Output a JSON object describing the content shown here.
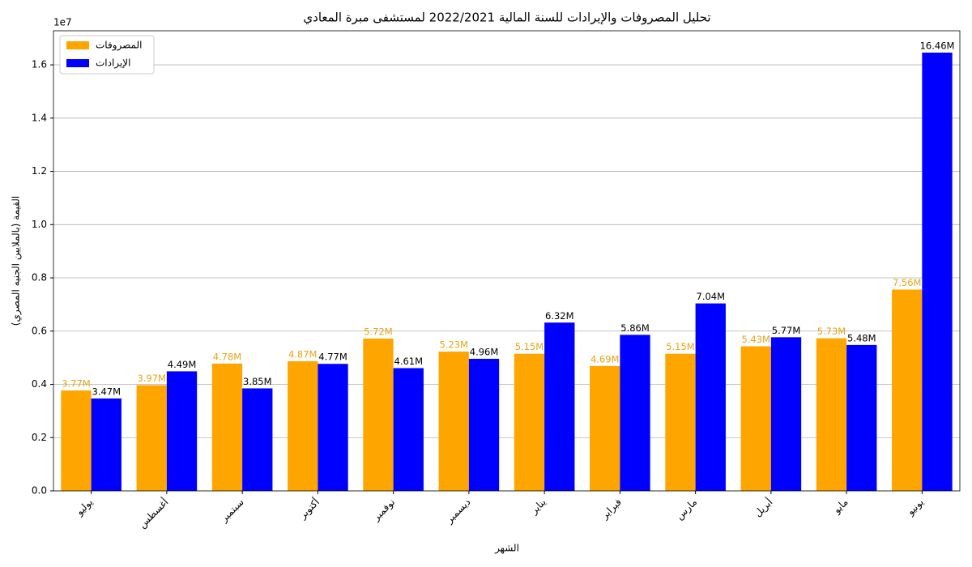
{
  "chart_data": {
    "type": "bar",
    "title": "تحليل المصروفات والإيرادات للسنة المالية 2022/2021 لمستشفى مبرة المعادي",
    "x_label": "الشهر",
    "y_label": "القيمة (بالملايين الجنيه المصري)",
    "y_offset_label": "1e7",
    "categories": [
      "يوليو",
      "أغسطس",
      "سبتمبر",
      "أكتوبر",
      "نوفمبر",
      "ديسمبر",
      "يناير",
      "فبراير",
      "مارس",
      "أبريل",
      "مايو",
      "يونيو"
    ],
    "series": [
      {
        "name": "المصروفات",
        "color": "#ffa500",
        "label_color": "#e8a317",
        "values": [
          3770000,
          3970000,
          4780000,
          4870000,
          5720000,
          5230000,
          5150000,
          4690000,
          5150000,
          5430000,
          5730000,
          7560000
        ],
        "value_labels": [
          "3.77M",
          "3.97M",
          "4.78M",
          "4.87M",
          "5.72M",
          "5.23M",
          "5.15M",
          "4.69M",
          "5.15M",
          "5.43M",
          "5.73M",
          "7.56M"
        ]
      },
      {
        "name": "الإيرادات",
        "color": "#0000ff",
        "label_color": "#000000",
        "values": [
          3470000,
          4490000,
          3850000,
          4770000,
          4610000,
          4960000,
          6320000,
          5860000,
          7040000,
          5770000,
          5480000,
          16460000
        ],
        "value_labels": [
          "3.47M",
          "4.49M",
          "3.85M",
          "4.77M",
          "4.61M",
          "4.96M",
          "6.32M",
          "5.86M",
          "7.04M",
          "5.77M",
          "5.48M",
          "16.46M"
        ]
      }
    ],
    "ylim": [
      0,
      17280000
    ],
    "yticks": [
      {
        "value": 0,
        "label": "0.0"
      },
      {
        "value": 2000000,
        "label": "0.2"
      },
      {
        "value": 4000000,
        "label": "0.4"
      },
      {
        "value": 6000000,
        "label": "0.6"
      },
      {
        "value": 8000000,
        "label": "0.8"
      },
      {
        "value": 10000000,
        "label": "1.0"
      },
      {
        "value": 12000000,
        "label": "1.2"
      },
      {
        "value": 14000000,
        "label": "1.4"
      },
      {
        "value": 16000000,
        "label": "1.6"
      }
    ],
    "grid": true,
    "legend": "upper left"
  }
}
